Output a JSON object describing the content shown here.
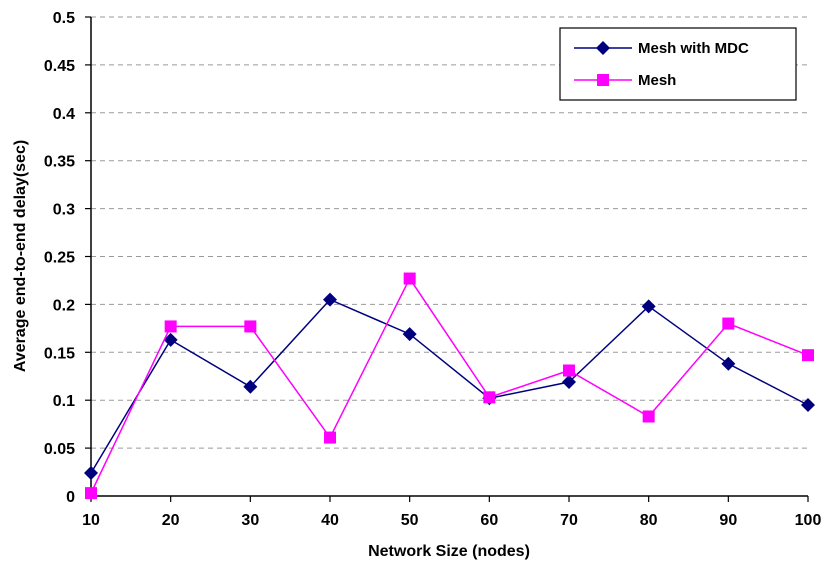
{
  "chart_data": {
    "type": "line",
    "title": "",
    "xlabel": "Network Size (nodes)",
    "ylabel": "Average end-to-end delay(sec)",
    "x": [
      10,
      20,
      30,
      40,
      50,
      60,
      70,
      80,
      90,
      100
    ],
    "x_tick_labels": [
      "10",
      "20",
      "30",
      "40",
      "50",
      "60",
      "70",
      "80",
      "90",
      "100"
    ],
    "y_tick_labels": [
      "0",
      "0.05",
      "0.1",
      "0.15",
      "0.2",
      "0.25",
      "0.3",
      "0.35",
      "0.4",
      "0.45",
      "0.5"
    ],
    "ylim": [
      0,
      0.5
    ],
    "grid": "horizontal dashed",
    "legend_position": "top-right",
    "series": [
      {
        "name": "Mesh with MDC",
        "color": "#00007f",
        "marker": "diamond",
        "values": [
          0.024,
          0.163,
          0.114,
          0.205,
          0.169,
          0.102,
          0.119,
          0.198,
          0.138,
          0.095
        ]
      },
      {
        "name": "Mesh",
        "color": "#ff00ff",
        "marker": "square",
        "values": [
          0.003,
          0.177,
          0.177,
          0.061,
          0.227,
          0.103,
          0.131,
          0.083,
          0.18,
          0.147
        ]
      }
    ]
  }
}
